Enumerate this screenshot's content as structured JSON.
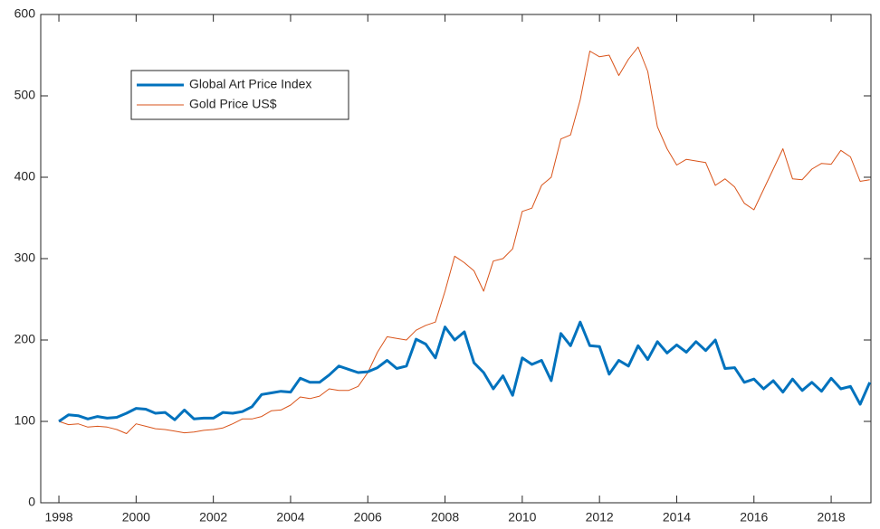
{
  "chart_data": {
    "type": "line",
    "x": [
      1998,
      1998.25,
      1998.5,
      1998.75,
      1999,
      1999.25,
      1999.5,
      1999.75,
      2000,
      2000.25,
      2000.5,
      2000.75,
      2001,
      2001.25,
      2001.5,
      2001.75,
      2002,
      2002.25,
      2002.5,
      2002.75,
      2003,
      2003.25,
      2003.5,
      2003.75,
      2004,
      2004.25,
      2004.5,
      2004.75,
      2005,
      2005.25,
      2005.5,
      2005.75,
      2006,
      2006.25,
      2006.5,
      2006.75,
      2007,
      2007.25,
      2007.5,
      2007.75,
      2008,
      2008.25,
      2008.5,
      2008.75,
      2009,
      2009.25,
      2009.5,
      2009.75,
      2010,
      2010.25,
      2010.5,
      2010.75,
      2011,
      2011.25,
      2011.5,
      2011.75,
      2012,
      2012.25,
      2012.5,
      2012.75,
      2013,
      2013.25,
      2013.5,
      2013.75,
      2014,
      2014.25,
      2014.5,
      2014.75,
      2015,
      2015.25,
      2015.5,
      2015.75,
      2016,
      2016.25,
      2016.5,
      2016.75,
      2017,
      2017.25,
      2017.5,
      2017.75,
      2018,
      2018.25,
      2018.5,
      2018.75,
      2019
    ],
    "series": [
      {
        "name": "Global Art Price Index",
        "color": "#0072bd",
        "width": 3,
        "values": [
          100,
          108,
          107,
          103,
          106,
          104,
          105,
          110,
          116,
          115,
          110,
          111,
          102,
          114,
          103,
          104,
          104,
          111,
          110,
          112,
          118,
          133,
          135,
          137,
          136,
          153,
          148,
          148,
          157,
          168,
          164,
          160,
          161,
          166,
          175,
          165,
          168,
          201,
          195,
          178,
          216,
          200,
          210,
          172,
          160,
          140,
          156,
          132,
          178,
          170,
          175,
          150,
          208,
          193,
          222,
          193,
          192,
          158,
          175,
          168,
          193,
          176,
          198,
          184,
          194,
          185,
          198,
          187,
          200,
          165,
          166,
          148,
          152,
          140,
          150,
          136,
          152,
          138,
          148,
          137,
          153,
          140,
          143,
          121,
          148
        ]
      },
      {
        "name": "Gold Price US$",
        "color": "#d95319",
        "width": 1,
        "values": [
          100,
          96,
          97,
          93,
          94,
          93,
          90,
          85,
          97,
          94,
          91,
          90,
          88,
          86,
          87,
          89,
          90,
          92,
          97,
          103,
          103,
          106,
          113,
          114,
          120,
          130,
          128,
          131,
          140,
          138,
          138,
          143,
          160,
          185,
          204,
          202,
          200,
          212,
          218,
          222,
          260,
          303,
          295,
          285,
          260,
          297,
          300,
          312,
          358,
          362,
          390,
          400,
          447,
          452,
          495,
          555,
          548,
          550,
          525,
          545,
          560,
          530,
          462,
          435,
          415,
          422,
          420,
          418,
          390,
          398,
          388,
          368,
          360,
          385,
          410,
          435,
          398,
          397,
          410,
          417,
          416,
          433,
          425,
          395,
          397
        ]
      }
    ],
    "xlim": [
      1997.53,
      2019.03
    ],
    "ylim": [
      0,
      600
    ],
    "xticks": [
      1998,
      2000,
      2002,
      2004,
      2006,
      2008,
      2010,
      2012,
      2014,
      2016,
      2018
    ],
    "yticks": [
      0,
      100,
      200,
      300,
      400,
      500,
      600
    ],
    "legend": "upper left"
  }
}
